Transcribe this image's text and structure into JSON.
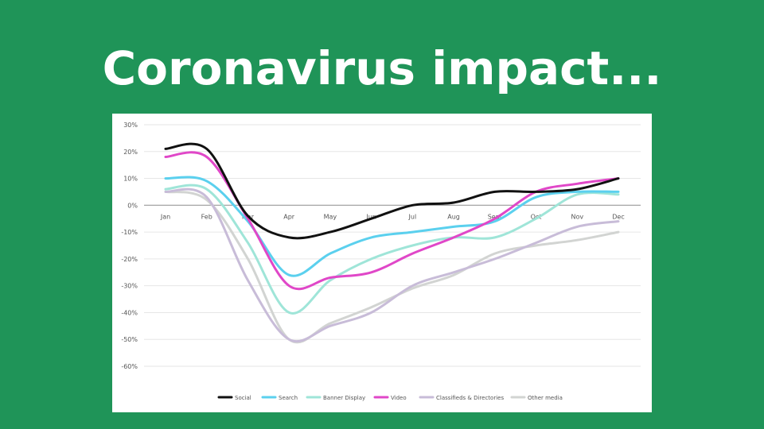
{
  "slide": {
    "title": "Coronavirus impact...",
    "background_color": "#1f9458",
    "title_color": "#ffffff"
  },
  "chart_data": {
    "type": "line",
    "categories": [
      "Jan",
      "Feb",
      "Mar",
      "Apr",
      "May",
      "Jun",
      "Jul",
      "Aug",
      "Sept",
      "Oct",
      "Nov",
      "Dec"
    ],
    "y_tick_labels": [
      "30%",
      "20%",
      "10%",
      "0%",
      "-10%",
      "-20%",
      "-30%",
      "-40%",
      "-50%",
      "-60%"
    ],
    "y_ticks": [
      30,
      20,
      10,
      0,
      -10,
      -20,
      -30,
      -40,
      -50,
      -60
    ],
    "ylim": [
      -60,
      30
    ],
    "grid": true,
    "legend_position": "bottom",
    "series": [
      {
        "name": "Social",
        "color": "#111111",
        "values": [
          21,
          21,
          -4,
          -12,
          -10,
          -5,
          0,
          1,
          5,
          5,
          6,
          10
        ]
      },
      {
        "name": "Search",
        "color": "#5bd0ee",
        "values": [
          10,
          9,
          -6,
          -26,
          -18,
          -12,
          -10,
          -8,
          -6,
          3,
          5,
          5
        ]
      },
      {
        "name": "Banner Display",
        "color": "#9fe5d8",
        "values": [
          6,
          6,
          -14,
          -40,
          -28,
          -20,
          -15,
          -12,
          -12,
          -5,
          4,
          4
        ]
      },
      {
        "name": "Video",
        "color": "#e047c8",
        "values": [
          18,
          18,
          -5,
          -30,
          -27,
          -25,
          -18,
          -12,
          -5,
          5,
          8,
          10
        ]
      },
      {
        "name": "Classifieds & Directories",
        "color": "#c8bcd8",
        "values": [
          5,
          3,
          -28,
          -50,
          -45,
          -40,
          -30,
          -25,
          -20,
          -14,
          -8,
          -6
        ]
      },
      {
        "name": "Other media",
        "color": "#d2d4d2",
        "values": [
          5,
          2,
          -20,
          -50,
          -44,
          -38,
          -31,
          -26,
          -18,
          -15,
          -13,
          -10
        ]
      }
    ]
  }
}
